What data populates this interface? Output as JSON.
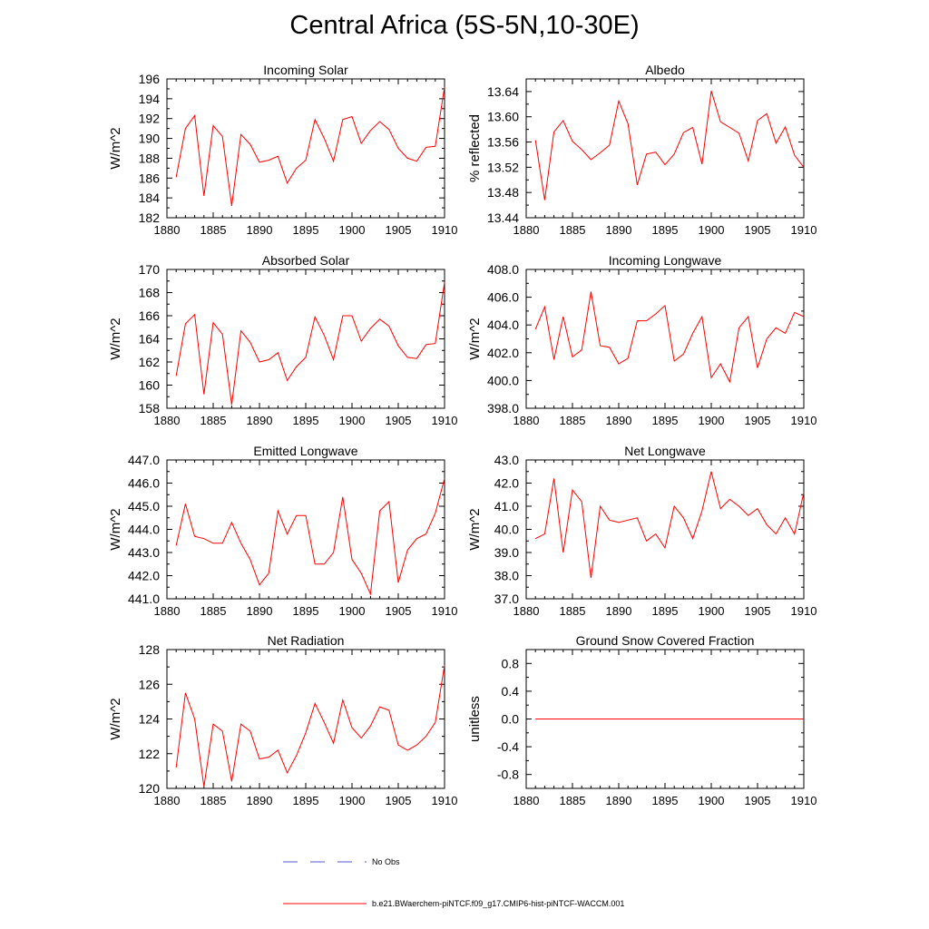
{
  "figure": {
    "title": "Central Africa (5S-5N,10-30E)"
  },
  "legend": {
    "no_obs_label": "No Obs",
    "model_label": "b.e21.BWaerchem-piNTCF.f09_g17.CMIP6-hist-piNTCF-WACCM.001"
  },
  "colors": {
    "model_line": "#ff0000",
    "obs_line": "#5555cc",
    "axis": "#000000"
  },
  "chart_data": [
    {
      "type": "line",
      "title": "Incoming Solar",
      "ylabel": "W/m^2",
      "xlim": [
        1880,
        1910
      ],
      "ylim": [
        182,
        196
      ],
      "xticks": [
        "1880",
        "1885",
        "1890",
        "1895",
        "1900",
        "1905",
        "1910"
      ],
      "yticks": [
        "182",
        "184",
        "186",
        "188",
        "190",
        "192",
        "194",
        "196"
      ],
      "x": [
        1881,
        1882,
        1883,
        1884,
        1885,
        1886,
        1887,
        1888,
        1889,
        1890,
        1891,
        1892,
        1893,
        1894,
        1895,
        1896,
        1897,
        1898,
        1899,
        1900,
        1901,
        1902,
        1903,
        1904,
        1905,
        1906,
        1907,
        1908,
        1909,
        1910
      ],
      "series": [
        {
          "values": [
            186.1,
            191.0,
            192.3,
            184.2,
            191.3,
            190.2,
            183.2,
            190.4,
            189.4,
            187.6,
            187.8,
            188.2,
            185.5,
            187.0,
            187.8,
            191.9,
            190.0,
            187.7,
            191.9,
            192.2,
            189.5,
            190.8,
            191.7,
            190.9,
            189.0,
            188.0,
            187.7,
            189.1,
            189.2,
            195.2
          ]
        }
      ]
    },
    {
      "type": "line",
      "title": "Albedo",
      "ylabel": "% reflected",
      "xlim": [
        1880,
        1910
      ],
      "ylim": [
        13.44,
        13.66
      ],
      "xticks": [
        "1880",
        "1885",
        "1890",
        "1895",
        "1900",
        "1905",
        "1910"
      ],
      "yticks": [
        "13.44",
        "13.48",
        "13.52",
        "13.56",
        "13.60",
        "13.64"
      ],
      "x": [
        1881,
        1882,
        1883,
        1884,
        1885,
        1886,
        1887,
        1888,
        1889,
        1890,
        1891,
        1892,
        1893,
        1894,
        1895,
        1896,
        1897,
        1898,
        1899,
        1900,
        1901,
        1902,
        1903,
        1904,
        1905,
        1906,
        1907,
        1908,
        1909,
        1910
      ],
      "series": [
        {
          "values": [
            13.563,
            13.468,
            13.576,
            13.594,
            13.561,
            13.548,
            13.532,
            13.543,
            13.555,
            13.625,
            13.589,
            13.492,
            13.541,
            13.544,
            13.524,
            13.541,
            13.575,
            13.583,
            13.525,
            13.641,
            13.592,
            13.583,
            13.574,
            13.53,
            13.594,
            13.605,
            13.558,
            13.584,
            13.539,
            13.52
          ]
        }
      ]
    },
    {
      "type": "line",
      "title": "Absorbed Solar",
      "ylabel": "W/m^2",
      "xlim": [
        1880,
        1910
      ],
      "ylim": [
        158,
        170
      ],
      "xticks": [
        "1880",
        "1885",
        "1890",
        "1895",
        "1900",
        "1905",
        "1910"
      ],
      "yticks": [
        "158",
        "160",
        "162",
        "164",
        "166",
        "168",
        "170"
      ],
      "x": [
        1881,
        1882,
        1883,
        1884,
        1885,
        1886,
        1887,
        1888,
        1889,
        1890,
        1891,
        1892,
        1893,
        1894,
        1895,
        1896,
        1897,
        1898,
        1899,
        1900,
        1901,
        1902,
        1903,
        1904,
        1905,
        1906,
        1907,
        1908,
        1909,
        1910
      ],
      "series": [
        {
          "values": [
            160.8,
            165.3,
            166.1,
            159.2,
            165.4,
            164.4,
            158.3,
            164.7,
            163.7,
            162.0,
            162.2,
            162.8,
            160.4,
            161.6,
            162.4,
            165.9,
            164.3,
            162.2,
            166.0,
            166.0,
            163.8,
            164.9,
            165.7,
            165.1,
            163.4,
            162.4,
            162.3,
            163.5,
            163.6,
            168.9
          ]
        }
      ]
    },
    {
      "type": "line",
      "title": "Incoming Longwave",
      "ylabel": "W/m^2",
      "xlim": [
        1880,
        1910
      ],
      "ylim": [
        398.0,
        408.0
      ],
      "xticks": [
        "1880",
        "1885",
        "1890",
        "1895",
        "1900",
        "1905",
        "1910"
      ],
      "yticks": [
        "398.0",
        "400.0",
        "402.0",
        "404.0",
        "406.0",
        "408.0"
      ],
      "x": [
        1881,
        1882,
        1883,
        1884,
        1885,
        1886,
        1887,
        1888,
        1889,
        1890,
        1891,
        1892,
        1893,
        1894,
        1895,
        1896,
        1897,
        1898,
        1899,
        1900,
        1901,
        1902,
        1903,
        1904,
        1905,
        1906,
        1907,
        1908,
        1909,
        1910
      ],
      "series": [
        {
          "values": [
            403.7,
            405.3,
            401.5,
            404.6,
            401.7,
            402.2,
            406.4,
            402.5,
            402.4,
            401.2,
            401.6,
            404.3,
            404.3,
            404.8,
            405.4,
            401.4,
            401.9,
            403.4,
            404.6,
            400.2,
            401.2,
            399.9,
            403.8,
            404.6,
            400.9,
            403.0,
            403.8,
            403.4,
            404.9,
            404.6
          ]
        }
      ]
    },
    {
      "type": "line",
      "title": "Emitted Longwave",
      "ylabel": "W/m^2",
      "xlim": [
        1880,
        1910
      ],
      "ylim": [
        441.0,
        447.0
      ],
      "xticks": [
        "1880",
        "1885",
        "1890",
        "1895",
        "1900",
        "1905",
        "1910"
      ],
      "yticks": [
        "441.0",
        "442.0",
        "443.0",
        "444.0",
        "445.0",
        "446.0",
        "447.0"
      ],
      "x": [
        1881,
        1882,
        1883,
        1884,
        1885,
        1886,
        1887,
        1888,
        1889,
        1890,
        1891,
        1892,
        1893,
        1894,
        1895,
        1896,
        1897,
        1898,
        1899,
        1900,
        1901,
        1902,
        1903,
        1904,
        1905,
        1906,
        1907,
        1908,
        1909,
        1910
      ],
      "series": [
        {
          "values": [
            443.3,
            445.1,
            443.7,
            443.6,
            443.4,
            443.4,
            444.3,
            443.4,
            442.7,
            441.6,
            442.1,
            444.8,
            443.8,
            444.6,
            444.6,
            442.5,
            442.5,
            443.0,
            445.4,
            442.7,
            442.1,
            441.2,
            444.8,
            445.2,
            441.7,
            443.1,
            443.6,
            443.8,
            444.7,
            446.2
          ]
        }
      ]
    },
    {
      "type": "line",
      "title": "Net Longwave",
      "ylabel": "W/m^2",
      "xlim": [
        1880,
        1910
      ],
      "ylim": [
        37.0,
        43.0
      ],
      "xticks": [
        "1880",
        "1885",
        "1890",
        "1895",
        "1900",
        "1905",
        "1910"
      ],
      "yticks": [
        "37.0",
        "38.0",
        "39.0",
        "40.0",
        "41.0",
        "42.0",
        "43.0"
      ],
      "x": [
        1881,
        1882,
        1883,
        1884,
        1885,
        1886,
        1887,
        1888,
        1889,
        1890,
        1891,
        1892,
        1893,
        1894,
        1895,
        1896,
        1897,
        1898,
        1899,
        1900,
        1901,
        1902,
        1903,
        1904,
        1905,
        1906,
        1907,
        1908,
        1909,
        1910
      ],
      "series": [
        {
          "values": [
            39.6,
            39.8,
            42.2,
            39.0,
            41.7,
            41.2,
            37.9,
            41.0,
            40.4,
            40.3,
            40.4,
            40.5,
            39.5,
            39.8,
            39.2,
            41.0,
            40.5,
            39.6,
            40.8,
            42.5,
            40.9,
            41.3,
            41.0,
            40.6,
            40.9,
            40.2,
            39.8,
            40.5,
            39.8,
            41.6
          ]
        }
      ]
    },
    {
      "type": "line",
      "title": "Net Radiation",
      "ylabel": "W/m^2",
      "xlim": [
        1880,
        1910
      ],
      "ylim": [
        120,
        128
      ],
      "xticks": [
        "1880",
        "1885",
        "1890",
        "1895",
        "1900",
        "1905",
        "1910"
      ],
      "yticks": [
        "120",
        "122",
        "124",
        "126",
        "128"
      ],
      "x": [
        1881,
        1882,
        1883,
        1884,
        1885,
        1886,
        1887,
        1888,
        1889,
        1890,
        1891,
        1892,
        1893,
        1894,
        1895,
        1896,
        1897,
        1898,
        1899,
        1900,
        1901,
        1902,
        1903,
        1904,
        1905,
        1906,
        1907,
        1908,
        1909,
        1910
      ],
      "series": [
        {
          "values": [
            121.2,
            125.5,
            124.0,
            120.1,
            123.7,
            123.3,
            120.4,
            123.7,
            123.3,
            121.7,
            121.8,
            122.2,
            120.9,
            121.9,
            123.2,
            124.9,
            123.8,
            122.6,
            125.1,
            123.5,
            122.9,
            123.6,
            124.7,
            124.5,
            122.5,
            122.2,
            122.5,
            123.0,
            123.8,
            127.1
          ]
        }
      ]
    },
    {
      "type": "line",
      "title": "Ground Snow Covered Fraction",
      "ylabel": "unitless",
      "xlim": [
        1880,
        1910
      ],
      "ylim": [
        -1.0,
        1.0
      ],
      "xticks": [
        "1880",
        "1885",
        "1890",
        "1895",
        "1900",
        "1905",
        "1910"
      ],
      "yticks": [
        "-0.8",
        "-0.4",
        "0.0",
        "0.4",
        "0.8"
      ],
      "x": [
        1881,
        1910
      ],
      "series": [
        {
          "values": [
            0.0,
            0.0
          ]
        }
      ]
    }
  ]
}
